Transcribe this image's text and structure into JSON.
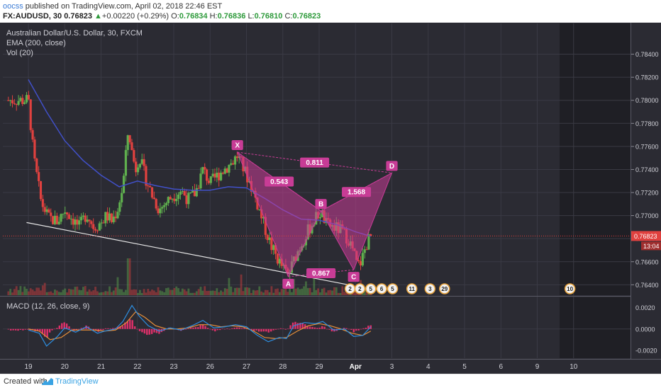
{
  "header": {
    "author": "oocss",
    "published": " published on TradingView.com, April 02, 2018 22:46 EST",
    "symbol": "FX:AUDUSD, 30",
    "last": "0.76823",
    "change_arrow": "▲",
    "change": "+0.00220 (+0.29%)",
    "o_label": "O:",
    "o_value": "0.76834",
    "h_label": "H:",
    "h_value": "0.76836",
    "l_label": "L:",
    "l_value": "0.76810",
    "c_label": "C:",
    "c_value": "0.76823"
  },
  "legend": {
    "instrument": "Australian Dollar/U.S. Dollar, 30, FXCM",
    "ema": "EMA (200, close)",
    "vol": "Vol (20)",
    "macd": "MACD (12, 26, close, 9)"
  },
  "footer": {
    "created": "Created with",
    "brand": "TradingView"
  },
  "colors": {
    "background": "#2b2b33",
    "grid": "#3a3a44",
    "candle_up": "#5fb04e",
    "candle_down": "#e0413f",
    "ema": "#4150c8",
    "pattern": "#c83c96",
    "trendline": "#e6e6e6",
    "price_label": "#e0413f",
    "macd_line": "#2d8ee0",
    "signal_line": "#e8903a",
    "histogram": "#e0306a"
  },
  "chart_data": [
    {
      "type": "candlestick",
      "title": "Australian Dollar/U.S. Dollar, 30, FXCM",
      "x_tick_labels": [
        "19",
        "20",
        "21",
        "22",
        "23",
        "26",
        "27",
        "28",
        "29",
        "Apr",
        "3",
        "4",
        "5",
        "6",
        "9",
        "10"
      ],
      "y_tick_labels": [
        "0.78400",
        "0.78200",
        "0.78000",
        "0.77800",
        "0.77600",
        "0.77400",
        "0.77200",
        "0.77000",
        "0.76800",
        "0.76600",
        "0.76400"
      ],
      "ylim": [
        0.7631,
        0.7852
      ],
      "current_price": "0.76823",
      "countdown": "13:04",
      "price_path": [
        [
          0,
          0.78
        ],
        [
          0.15,
          0.775
        ],
        [
          0.35,
          0.7712
        ],
        [
          0.55,
          0.7698
        ],
        [
          0.8,
          0.7695
        ],
        [
          1.0,
          0.7705
        ],
        [
          1.2,
          0.7698
        ],
        [
          1.4,
          0.769
        ],
        [
          1.6,
          0.7702
        ],
        [
          1.8,
          0.769
        ],
        [
          2.0,
          0.7694
        ],
        [
          2.15,
          0.77
        ],
        [
          2.3,
          0.7695
        ],
        [
          2.45,
          0.7705
        ],
        [
          2.6,
          0.7725
        ],
        [
          2.75,
          0.7775
        ],
        [
          2.85,
          0.7755
        ],
        [
          2.95,
          0.774
        ],
        [
          3.05,
          0.7752
        ],
        [
          3.2,
          0.7735
        ],
        [
          3.4,
          0.7718
        ],
        [
          3.6,
          0.7705
        ],
        [
          3.8,
          0.7712
        ],
        [
          4.0,
          0.7718
        ],
        [
          4.2,
          0.7722
        ],
        [
          4.4,
          0.7714
        ],
        [
          4.6,
          0.772
        ],
        [
          4.8,
          0.774
        ],
        [
          5.0,
          0.7728
        ],
        [
          5.3,
          0.7738
        ],
        [
          5.6,
          0.7746
        ],
        [
          5.75,
          0.7752
        ],
        [
          5.9,
          0.7742
        ],
        [
          6.1,
          0.7728
        ],
        [
          6.3,
          0.771
        ],
        [
          6.5,
          0.769
        ],
        [
          6.7,
          0.7672
        ],
        [
          6.9,
          0.766
        ],
        [
          7.05,
          0.7652
        ],
        [
          7.15,
          0.7648
        ],
        [
          7.35,
          0.7665
        ],
        [
          7.55,
          0.7678
        ],
        [
          7.75,
          0.769
        ],
        [
          7.95,
          0.77
        ],
        [
          8.05,
          0.7703
        ],
        [
          8.2,
          0.7692
        ],
        [
          8.4,
          0.769
        ],
        [
          8.6,
          0.7687
        ],
        [
          8.8,
          0.768
        ],
        [
          8.95,
          0.7668
        ],
        [
          9.05,
          0.7656
        ],
        [
          9.15,
          0.766
        ],
        [
          9.3,
          0.7675
        ],
        [
          9.42,
          0.76823
        ]
      ],
      "ema_path": [
        [
          0,
          0.7818
        ],
        [
          0.5,
          0.779
        ],
        [
          1.0,
          0.7765
        ],
        [
          1.5,
          0.7748
        ],
        [
          2.0,
          0.7735
        ],
        [
          2.5,
          0.7725
        ],
        [
          3.0,
          0.773
        ],
        [
          3.5,
          0.7726
        ],
        [
          4.0,
          0.7723
        ],
        [
          4.5,
          0.7722
        ],
        [
          5.0,
          0.7722
        ],
        [
          5.5,
          0.7725
        ],
        [
          6.0,
          0.7724
        ],
        [
          6.5,
          0.7715
        ],
        [
          7.0,
          0.7705
        ],
        [
          7.5,
          0.7697
        ],
        [
          8.0,
          0.7696
        ],
        [
          8.5,
          0.7692
        ],
        [
          9.0,
          0.7686
        ],
        [
          9.42,
          0.7682
        ]
      ],
      "trendline": [
        [
          -0.05,
          0.7694
        ],
        [
          8.8,
          0.764
        ]
      ],
      "harmonic_pattern": {
        "points": [
          {
            "label": "X",
            "x": 5.75,
            "y": 0.7755
          },
          {
            "label": "A",
            "x": 7.15,
            "y": 0.7647
          },
          {
            "label": "B",
            "x": 8.05,
            "y": 0.7704
          },
          {
            "label": "C",
            "x": 8.95,
            "y": 0.7653
          },
          {
            "label": "D",
            "x": 10.0,
            "y": 0.7737
          }
        ],
        "ratios": [
          {
            "label": "0.543",
            "between": "XB"
          },
          {
            "label": "0.811",
            "between": "XD"
          },
          {
            "label": "1.568",
            "between": "BD"
          },
          {
            "label": "0.867",
            "between": "AC"
          }
        ]
      },
      "event_badges": [
        "2",
        "2",
        "5",
        "6",
        "5",
        "11",
        "3",
        "29",
        "10"
      ]
    },
    {
      "type": "line",
      "title": "MACD (12, 26, close, 9)",
      "y_tick_labels": [
        "0.0020",
        "0.0000",
        "-0.0020"
      ],
      "ylim": [
        -0.0026,
        0.0027
      ],
      "series": [
        {
          "values": [
            [
              0,
              -0.0001
            ],
            [
              0.3,
              -0.0004
            ],
            [
              0.5,
              -0.0016
            ],
            [
              0.8,
              -0.0007
            ],
            [
              1.0,
              0.0001
            ],
            [
              1.3,
              -0.0003
            ],
            [
              1.6,
              0.0002
            ],
            [
              1.9,
              -0.0004
            ],
            [
              2.1,
              -0.0002
            ],
            [
              2.4,
              0.0
            ],
            [
              2.6,
              0.0007
            ],
            [
              2.85,
              0.0022
            ],
            [
              3.05,
              0.0012
            ],
            [
              3.3,
              0.0003
            ],
            [
              3.6,
              -0.0002
            ],
            [
              3.9,
              0.0001
            ],
            [
              4.2,
              -0.0001
            ],
            [
              4.5,
              0.0003
            ],
            [
              4.8,
              0.0008
            ],
            [
              5.1,
              0.0001
            ],
            [
              5.4,
              0.0002
            ],
            [
              5.7,
              0.0004
            ],
            [
              6.0,
              0.0002
            ],
            [
              6.3,
              -0.0006
            ],
            [
              6.6,
              -0.0012
            ],
            [
              6.9,
              -0.0008
            ],
            [
              7.1,
              -0.0009
            ],
            [
              7.3,
              0.0003
            ],
            [
              7.6,
              0.0006
            ],
            [
              7.9,
              0.0005
            ],
            [
              8.1,
              0.0007
            ],
            [
              8.4,
              -0.0001
            ],
            [
              8.7,
              0.0
            ],
            [
              8.95,
              -0.0007
            ],
            [
              9.2,
              -0.0006
            ],
            [
              9.42,
              0.0002
            ]
          ]
        },
        {
          "values": [
            [
              0,
              0.0
            ],
            [
              0.3,
              -0.0002
            ],
            [
              0.6,
              -0.001
            ],
            [
              0.9,
              -0.0008
            ],
            [
              1.2,
              -0.0001
            ],
            [
              1.5,
              -0.0001
            ],
            [
              1.8,
              -0.0001
            ],
            [
              2.1,
              -0.0002
            ],
            [
              2.4,
              -0.0001
            ],
            [
              2.7,
              0.0006
            ],
            [
              2.95,
              0.0016
            ],
            [
              3.2,
              0.0011
            ],
            [
              3.5,
              0.0003
            ],
            [
              3.8,
              0.0
            ],
            [
              4.1,
              0.0
            ],
            [
              4.4,
              0.0001
            ],
            [
              4.7,
              0.0004
            ],
            [
              5.0,
              0.0004
            ],
            [
              5.3,
              0.0002
            ],
            [
              5.6,
              0.0003
            ],
            [
              5.9,
              0.0002
            ],
            [
              6.2,
              -0.0002
            ],
            [
              6.5,
              -0.0008
            ],
            [
              6.8,
              -0.0009
            ],
            [
              7.1,
              -0.0008
            ],
            [
              7.4,
              -0.0002
            ],
            [
              7.7,
              0.0003
            ],
            [
              8.0,
              0.0005
            ],
            [
              8.3,
              0.0003
            ],
            [
              8.6,
              0.0
            ],
            [
              8.9,
              -0.0004
            ],
            [
              9.2,
              -0.0006
            ],
            [
              9.42,
              -0.0002
            ]
          ]
        }
      ]
    }
  ],
  "x_axis": {
    "labels": [
      "19",
      "20",
      "21",
      "22",
      "23",
      "26",
      "27",
      "28",
      "29",
      "Apr",
      "3",
      "4",
      "5",
      "6",
      "9",
      "10"
    ]
  }
}
